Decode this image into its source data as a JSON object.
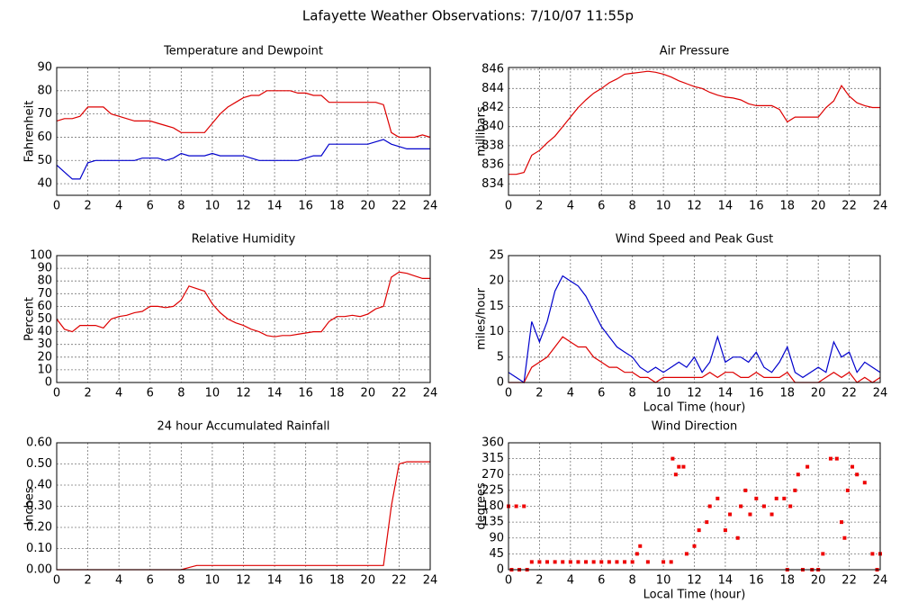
{
  "title": "Lafayette Weather Observations: 7/10/07 11:55p",
  "chart_data": [
    {
      "type": "line",
      "title": "Temperature and Dewpoint",
      "y_label": "Fahrenheit",
      "x": [
        0,
        0.5,
        1,
        1.5,
        2,
        2.5,
        3,
        3.5,
        4,
        4.5,
        5,
        5.5,
        6,
        6.5,
        7,
        7.5,
        8,
        8.5,
        9,
        9.5,
        10,
        10.5,
        11,
        11.5,
        12,
        12.5,
        13,
        13.5,
        14,
        14.5,
        15,
        15.5,
        16,
        16.5,
        17,
        17.5,
        18,
        18.5,
        19,
        19.5,
        20,
        20.5,
        21,
        21.5,
        22,
        22.5,
        23,
        23.5,
        24
      ],
      "series": [
        {
          "color": "#dd0000",
          "values": [
            67,
            68,
            68,
            69,
            73,
            73,
            73,
            70,
            69,
            68,
            67,
            67,
            67,
            66,
            65,
            64,
            62,
            62,
            62,
            62,
            66,
            70,
            73,
            75,
            77,
            78,
            78,
            80,
            80,
            80,
            80,
            79,
            79,
            78,
            78,
            75,
            75,
            75,
            75,
            75,
            75,
            75,
            74,
            62,
            60,
            60,
            60,
            61,
            60
          ]
        },
        {
          "color": "#0000cc",
          "values": [
            48,
            45,
            42,
            42,
            49,
            50,
            50,
            50,
            50,
            50,
            50,
            51,
            51,
            51,
            50,
            51,
            53,
            52,
            52,
            52,
            53,
            52,
            52,
            52,
            52,
            51,
            50,
            50,
            50,
            50,
            50,
            50,
            51,
            52,
            52,
            57,
            57,
            57,
            57,
            57,
            57,
            58,
            59,
            57,
            56,
            55,
            55,
            55,
            55
          ]
        }
      ],
      "xlim": [
        0,
        24
      ],
      "xticks": [
        0,
        2,
        4,
        6,
        8,
        10,
        12,
        14,
        16,
        18,
        20,
        22,
        24
      ],
      "ylim": [
        35,
        90
      ],
      "yticks": [
        40,
        50,
        60,
        70,
        80,
        90
      ],
      "grid": true
    },
    {
      "type": "line",
      "title": "Air Pressure",
      "y_label": "millibars",
      "x": [
        0,
        0.5,
        1,
        1.5,
        2,
        2.5,
        3,
        3.5,
        4,
        4.5,
        5,
        5.5,
        6,
        6.5,
        7,
        7.5,
        8,
        8.5,
        9,
        9.5,
        10,
        10.5,
        11,
        11.5,
        12,
        12.5,
        13,
        13.5,
        14,
        14.5,
        15,
        15.5,
        16,
        16.5,
        17,
        17.5,
        18,
        18.5,
        19,
        19.5,
        20,
        20.5,
        21,
        21.5,
        22,
        22.5,
        23,
        23.5,
        24
      ],
      "series": [
        {
          "color": "#dd0000",
          "values": [
            835,
            835,
            835.2,
            837,
            837.5,
            838.3,
            839,
            840,
            841,
            842,
            842.8,
            843.5,
            844,
            844.6,
            845,
            845.5,
            845.6,
            845.7,
            845.8,
            845.7,
            845.5,
            845.2,
            844.8,
            844.5,
            844.2,
            844,
            843.6,
            843.3,
            843.1,
            843,
            842.8,
            842.4,
            842.2,
            842.2,
            842.2,
            841.8,
            840.5,
            841,
            841,
            841,
            841,
            842,
            842.7,
            844.3,
            843.2,
            842.5,
            842.2,
            842,
            842
          ]
        }
      ],
      "xlim": [
        0,
        24
      ],
      "xticks": [
        0,
        2,
        4,
        6,
        8,
        10,
        12,
        14,
        16,
        18,
        20,
        22,
        24
      ],
      "ylim": [
        832.8,
        846.2
      ],
      "yticks": [
        834,
        836,
        838,
        840,
        842,
        844,
        846
      ],
      "grid": true
    },
    {
      "type": "line",
      "title": "Relative Humidity",
      "y_label": "Percent",
      "x": [
        0,
        0.5,
        1,
        1.5,
        2,
        2.5,
        3,
        3.5,
        4,
        4.5,
        5,
        5.5,
        6,
        6.5,
        7,
        7.5,
        8,
        8.5,
        9,
        9.5,
        10,
        10.5,
        11,
        11.5,
        12,
        12.5,
        13,
        13.5,
        14,
        14.5,
        15,
        15.5,
        16,
        16.5,
        17,
        17.5,
        18,
        18.5,
        19,
        19.5,
        20,
        20.5,
        21,
        21.5,
        22,
        22.5,
        23,
        23.5,
        24
      ],
      "series": [
        {
          "color": "#dd0000",
          "values": [
            50,
            42,
            40,
            45,
            45,
            45,
            43,
            50,
            52,
            53,
            55,
            56,
            60,
            60,
            59,
            60,
            65,
            76,
            74,
            72,
            62,
            55,
            50,
            47,
            45,
            42,
            40,
            37,
            36,
            37,
            37,
            38,
            39,
            40,
            40,
            48,
            52,
            52,
            53,
            52,
            54,
            58,
            60,
            83,
            87,
            86,
            84,
            82,
            82
          ]
        }
      ],
      "xlim": [
        0,
        24
      ],
      "xticks": [
        0,
        2,
        4,
        6,
        8,
        10,
        12,
        14,
        16,
        18,
        20,
        22,
        24
      ],
      "ylim": [
        0,
        100
      ],
      "yticks": [
        0,
        10,
        20,
        30,
        40,
        50,
        60,
        70,
        80,
        90,
        100
      ],
      "grid": true
    },
    {
      "type": "line",
      "title": "Wind Speed and Peak Gust",
      "y_label": "miles/hour",
      "x_label": "Local Time (hour)",
      "x": [
        0,
        0.5,
        1,
        1.5,
        2,
        2.5,
        3,
        3.5,
        4,
        4.5,
        5,
        5.5,
        6,
        6.5,
        7,
        7.5,
        8,
        8.5,
        9,
        9.5,
        10,
        10.5,
        11,
        11.5,
        12,
        12.5,
        13,
        13.5,
        14,
        14.5,
        15,
        15.5,
        16,
        16.5,
        17,
        17.5,
        18,
        18.5,
        19,
        19.5,
        20,
        20.5,
        21,
        21.5,
        22,
        22.5,
        23,
        23.5,
        24
      ],
      "series": [
        {
          "color": "#0000cc",
          "values": [
            2,
            1,
            0,
            12,
            8,
            12,
            18,
            21,
            20,
            19,
            17,
            14,
            11,
            9,
            7,
            6,
            5,
            3,
            2,
            3,
            2,
            3,
            4,
            3,
            5,
            2,
            4,
            9,
            4,
            5,
            5,
            4,
            6,
            3,
            2,
            4,
            7,
            2,
            1,
            2,
            3,
            2,
            8,
            5,
            6,
            2,
            4,
            3,
            2
          ]
        },
        {
          "color": "#dd0000",
          "values": [
            0,
            0,
            0,
            3,
            4,
            5,
            7,
            9,
            8,
            7,
            7,
            5,
            4,
            3,
            3,
            2,
            2,
            1,
            1,
            0,
            1,
            1,
            1,
            1,
            1,
            1,
            2,
            1,
            2,
            2,
            1,
            1,
            2,
            1,
            1,
            1,
            2,
            0,
            0,
            0,
            0,
            1,
            2,
            1,
            2,
            0,
            1,
            0,
            1
          ]
        }
      ],
      "xlim": [
        0,
        24
      ],
      "xticks": [
        0,
        2,
        4,
        6,
        8,
        10,
        12,
        14,
        16,
        18,
        20,
        22,
        24
      ],
      "ylim": [
        0,
        25
      ],
      "yticks": [
        0,
        5,
        10,
        15,
        20,
        25
      ],
      "grid": true
    },
    {
      "type": "line",
      "title": "24 hour Accumulated Rainfall",
      "y_label": "Inches",
      "x": [
        0,
        0.5,
        1,
        1.5,
        2,
        2.5,
        3,
        3.5,
        4,
        4.5,
        5,
        5.5,
        6,
        6.5,
        7,
        7.5,
        8,
        8.5,
        9,
        9.5,
        10,
        10.5,
        11,
        11.5,
        12,
        12.5,
        13,
        13.5,
        14,
        14.5,
        15,
        15.5,
        16,
        16.5,
        17,
        17.5,
        18,
        18.5,
        19,
        19.5,
        20,
        20.5,
        21,
        21.5,
        22,
        22.5,
        23,
        23.5,
        24
      ],
      "series": [
        {
          "color": "#dd0000",
          "values": [
            0,
            0,
            0,
            0,
            0,
            0,
            0,
            0,
            0,
            0,
            0,
            0,
            0,
            0,
            0,
            0,
            0,
            0.01,
            0.02,
            0.02,
            0.02,
            0.02,
            0.02,
            0.02,
            0.02,
            0.02,
            0.02,
            0.02,
            0.02,
            0.02,
            0.02,
            0.02,
            0.02,
            0.02,
            0.02,
            0.02,
            0.02,
            0.02,
            0.02,
            0.02,
            0.02,
            0.02,
            0.02,
            0.3,
            0.5,
            0.51,
            0.51,
            0.51,
            0.51
          ]
        }
      ],
      "xlim": [
        0,
        24
      ],
      "xticks": [
        0,
        2,
        4,
        6,
        8,
        10,
        12,
        14,
        16,
        18,
        20,
        22,
        24
      ],
      "ylim": [
        0,
        0.6
      ],
      "yticks": [
        {
          "value": 0,
          "label": "0.00"
        },
        {
          "value": 0.1,
          "label": "0.10"
        },
        {
          "value": 0.2,
          "label": "0.20"
        },
        {
          "value": 0.3,
          "label": "0.30"
        },
        {
          "value": 0.4,
          "label": "0.40"
        },
        {
          "value": 0.5,
          "label": "0.50"
        },
        {
          "value": 0.6,
          "label": "0.60"
        }
      ],
      "grid": true
    },
    {
      "type": "scatter",
      "title": "Wind Direction",
      "y_label": "degrees",
      "x_label": "Local Time (hour)",
      "color": "#ee0000",
      "x": [
        0,
        0.5,
        1,
        0.2,
        0.7,
        1.2,
        1.5,
        2,
        2.5,
        3,
        3.5,
        4,
        4.5,
        5,
        5.5,
        6,
        6.5,
        7,
        7.5,
        8,
        8.3,
        8.5,
        9,
        10,
        10.5,
        10.6,
        10.8,
        11,
        11.3,
        11.5,
        12,
        12.3,
        12.8,
        13,
        13.5,
        14,
        14.3,
        14.8,
        15,
        15.3,
        15.6,
        16,
        16.5,
        17,
        17.3,
        17.8,
        18,
        18.2,
        18.5,
        18.7,
        19,
        19.3,
        19.6,
        20,
        20.3,
        20.8,
        21.2,
        21.5,
        21.7,
        21.9,
        22.2,
        22.5,
        23,
        23.5,
        23.8,
        24
      ],
      "values": [
        180,
        180,
        180,
        0,
        0,
        0,
        22,
        22,
        22,
        22,
        22,
        22,
        22,
        22,
        22,
        22,
        22,
        22,
        22,
        22,
        45,
        67,
        22,
        22,
        22,
        315,
        270,
        292,
        292,
        45,
        67,
        112,
        135,
        180,
        202,
        112,
        157,
        90,
        180,
        225,
        157,
        202,
        180,
        157,
        202,
        202,
        0,
        180,
        225,
        270,
        0,
        292,
        0,
        0,
        45,
        315,
        315,
        135,
        90,
        225,
        292,
        270,
        247,
        45,
        0,
        45
      ],
      "xlim": [
        0,
        24
      ],
      "xticks": [
        0,
        2,
        4,
        6,
        8,
        10,
        12,
        14,
        16,
        18,
        20,
        22,
        24
      ],
      "ylim": [
        0,
        360
      ],
      "yticks": [
        0,
        45,
        90,
        135,
        180,
        225,
        270,
        315,
        360
      ],
      "grid": true
    }
  ]
}
